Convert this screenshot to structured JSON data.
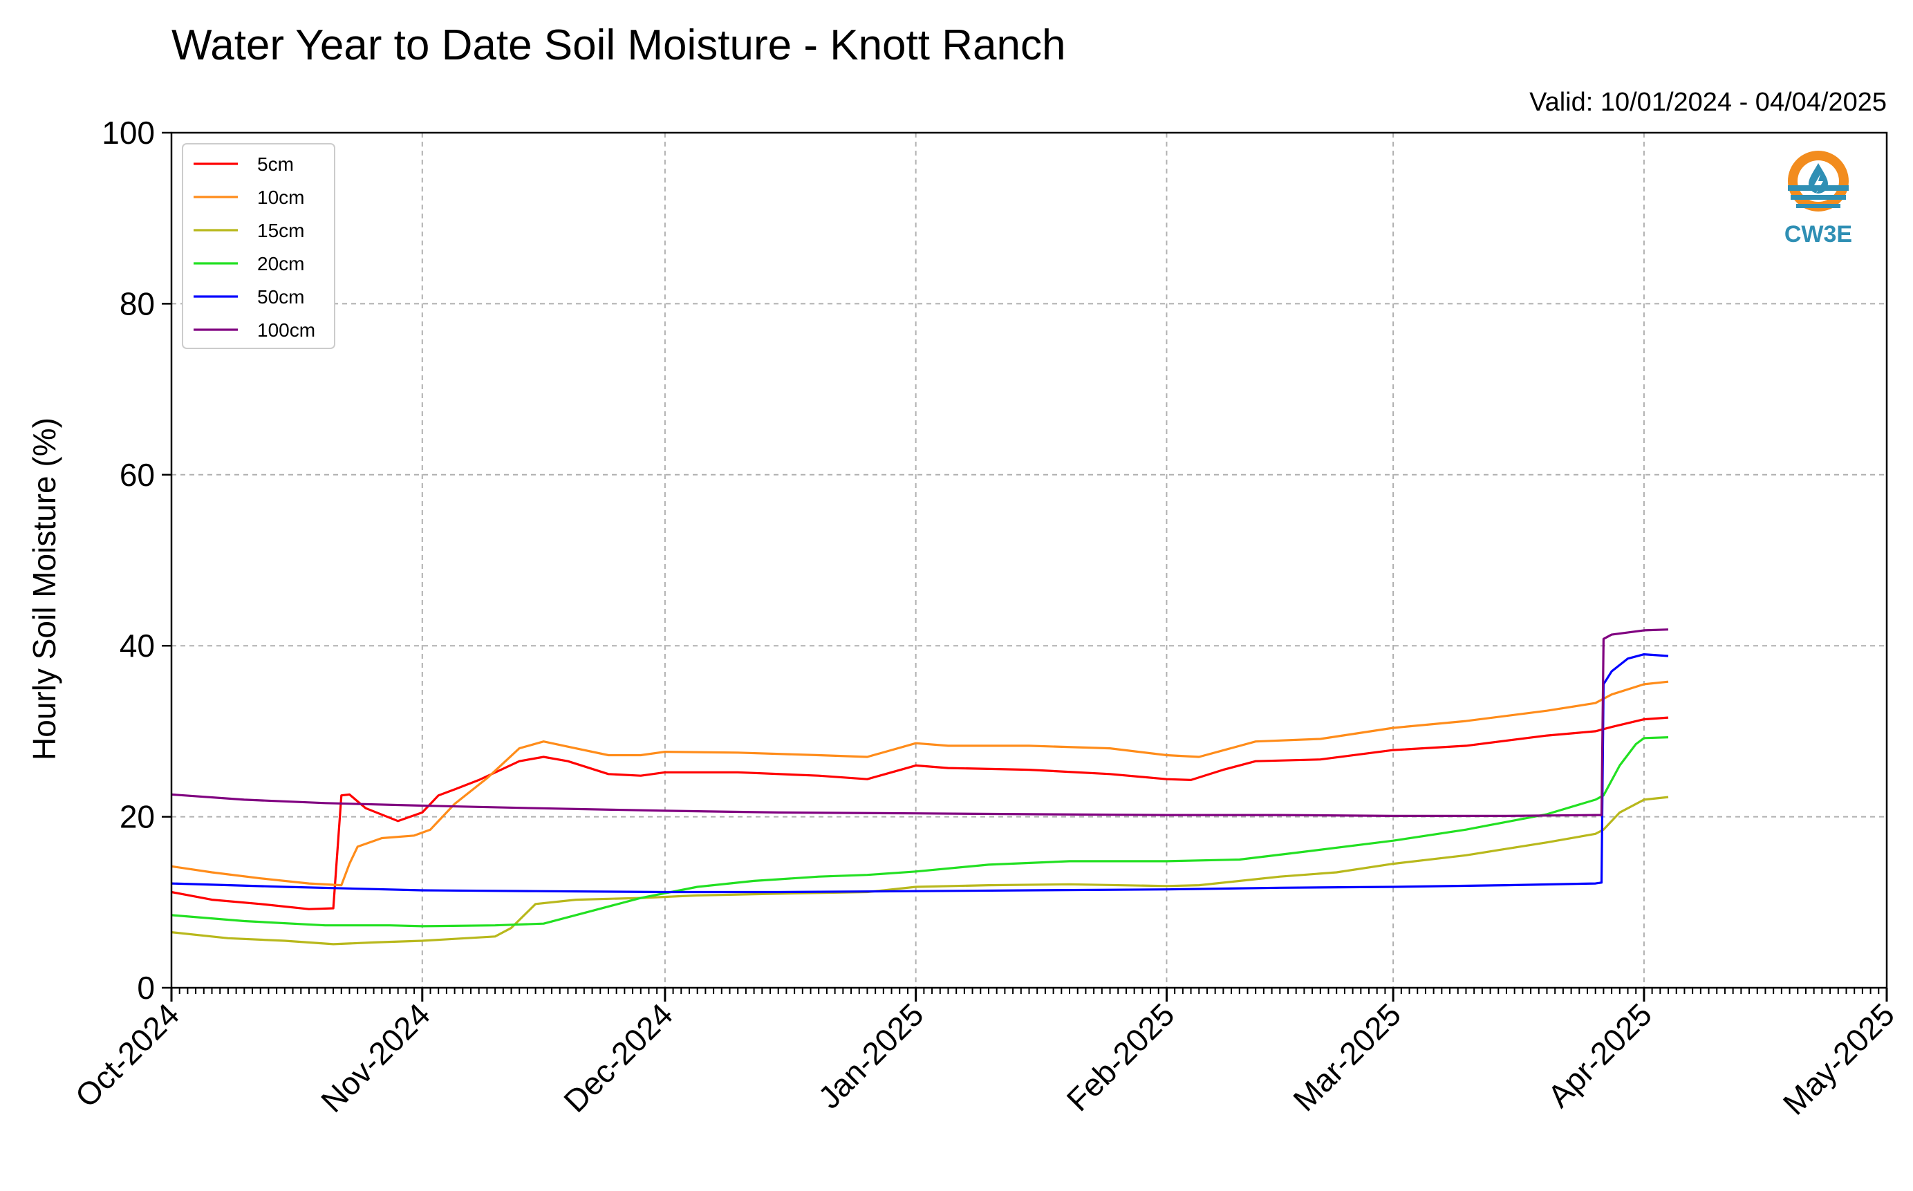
{
  "chart_data": {
    "type": "line",
    "title": "Water Year to Date Soil Moisture - Knott Ranch",
    "subtitle": "Valid: 10/01/2024 - 04/04/2025",
    "ylabel": "Hourly Soil Moisture (%)",
    "xlabel": "",
    "ylim": [
      0,
      100
    ],
    "yticks": [
      "0",
      "20",
      "40",
      "60",
      "80",
      "100"
    ],
    "xlim": [
      "2024-10-01",
      "2025-05-01"
    ],
    "xticks": [
      {
        "date": "2024-10-01",
        "label": "Oct-2024"
      },
      {
        "date": "2024-11-01",
        "label": "Nov-2024"
      },
      {
        "date": "2024-12-01",
        "label": "Dec-2024"
      },
      {
        "date": "2025-01-01",
        "label": "Jan-2025"
      },
      {
        "date": "2025-02-01",
        "label": "Feb-2025"
      },
      {
        "date": "2025-03-01",
        "label": "Mar-2025"
      },
      {
        "date": "2025-04-01",
        "label": "Apr-2025"
      },
      {
        "date": "2025-05-01",
        "label": "May-2025"
      }
    ],
    "grid": true,
    "legend_position": "top-left",
    "series": [
      {
        "name": "5cm",
        "color": "#ff0000",
        "points": [
          [
            "2024-10-01",
            11.2
          ],
          [
            "2024-10-06",
            10.3
          ],
          [
            "2024-10-12",
            9.8
          ],
          [
            "2024-10-18",
            9.2
          ],
          [
            "2024-10-21",
            9.3
          ],
          [
            "2024-10-22",
            22.5
          ],
          [
            "2024-10-23",
            22.6
          ],
          [
            "2024-10-25",
            21.0
          ],
          [
            "2024-10-29",
            19.5
          ],
          [
            "2024-11-01",
            20.5
          ],
          [
            "2024-11-03",
            22.5
          ],
          [
            "2024-11-05",
            23.2
          ],
          [
            "2024-11-08",
            24.3
          ],
          [
            "2024-11-13",
            26.5
          ],
          [
            "2024-11-16",
            27.0
          ],
          [
            "2024-11-19",
            26.5
          ],
          [
            "2024-11-24",
            25.0
          ],
          [
            "2024-11-28",
            24.8
          ],
          [
            "2024-12-01",
            25.2
          ],
          [
            "2024-12-10",
            25.2
          ],
          [
            "2024-12-20",
            24.8
          ],
          [
            "2024-12-26",
            24.4
          ],
          [
            "2025-01-01",
            26.0
          ],
          [
            "2025-01-05",
            25.7
          ],
          [
            "2025-01-15",
            25.5
          ],
          [
            "2025-01-25",
            25.0
          ],
          [
            "2025-02-01",
            24.4
          ],
          [
            "2025-02-04",
            24.3
          ],
          [
            "2025-02-08",
            25.5
          ],
          [
            "2025-02-12",
            26.5
          ],
          [
            "2025-02-20",
            26.7
          ],
          [
            "2025-03-01",
            27.8
          ],
          [
            "2025-03-10",
            28.3
          ],
          [
            "2025-03-20",
            29.5
          ],
          [
            "2025-03-26",
            30.0
          ],
          [
            "2025-03-28",
            30.5
          ],
          [
            "2025-04-01",
            31.4
          ],
          [
            "2025-04-04",
            31.6
          ]
        ]
      },
      {
        "name": "10cm",
        "color": "#ff8c1a",
        "points": [
          [
            "2024-10-01",
            14.2
          ],
          [
            "2024-10-06",
            13.5
          ],
          [
            "2024-10-12",
            12.8
          ],
          [
            "2024-10-18",
            12.2
          ],
          [
            "2024-10-22",
            12.0
          ],
          [
            "2024-10-23",
            14.5
          ],
          [
            "2024-10-24",
            16.5
          ],
          [
            "2024-10-27",
            17.5
          ],
          [
            "2024-10-31",
            17.8
          ],
          [
            "2024-11-02",
            18.5
          ],
          [
            "2024-11-05",
            21.5
          ],
          [
            "2024-11-09",
            24.5
          ],
          [
            "2024-11-13",
            28.0
          ],
          [
            "2024-11-16",
            28.8
          ],
          [
            "2024-11-19",
            28.2
          ],
          [
            "2024-11-24",
            27.2
          ],
          [
            "2024-11-28",
            27.2
          ],
          [
            "2024-12-01",
            27.6
          ],
          [
            "2024-12-10",
            27.5
          ],
          [
            "2024-12-20",
            27.2
          ],
          [
            "2024-12-26",
            27.0
          ],
          [
            "2025-01-01",
            28.6
          ],
          [
            "2025-01-05",
            28.3
          ],
          [
            "2025-01-15",
            28.3
          ],
          [
            "2025-01-25",
            28.0
          ],
          [
            "2025-02-01",
            27.2
          ],
          [
            "2025-02-05",
            27.0
          ],
          [
            "2025-02-12",
            28.8
          ],
          [
            "2025-02-20",
            29.1
          ],
          [
            "2025-03-01",
            30.4
          ],
          [
            "2025-03-10",
            31.2
          ],
          [
            "2025-03-20",
            32.4
          ],
          [
            "2025-03-26",
            33.3
          ],
          [
            "2025-03-28",
            34.3
          ],
          [
            "2025-04-01",
            35.5
          ],
          [
            "2025-04-04",
            35.8
          ]
        ]
      },
      {
        "name": "15cm",
        "color": "#b8b81c",
        "points": [
          [
            "2024-10-01",
            6.5
          ],
          [
            "2024-10-08",
            5.8
          ],
          [
            "2024-10-15",
            5.5
          ],
          [
            "2024-10-21",
            5.1
          ],
          [
            "2024-10-26",
            5.3
          ],
          [
            "2024-11-01",
            5.5
          ],
          [
            "2024-11-10",
            6.0
          ],
          [
            "2024-11-12",
            7.0
          ],
          [
            "2024-11-15",
            9.8
          ],
          [
            "2024-11-20",
            10.3
          ],
          [
            "2024-11-28",
            10.5
          ],
          [
            "2024-12-05",
            10.8
          ],
          [
            "2024-12-15",
            11.0
          ],
          [
            "2024-12-26",
            11.2
          ],
          [
            "2025-01-01",
            11.8
          ],
          [
            "2025-01-10",
            12.0
          ],
          [
            "2025-01-20",
            12.1
          ],
          [
            "2025-02-01",
            11.9
          ],
          [
            "2025-02-05",
            12.0
          ],
          [
            "2025-02-15",
            13.0
          ],
          [
            "2025-02-22",
            13.5
          ],
          [
            "2025-03-01",
            14.5
          ],
          [
            "2025-03-10",
            15.5
          ],
          [
            "2025-03-20",
            17.0
          ],
          [
            "2025-03-26",
            18.0
          ],
          [
            "2025-03-27",
            18.5
          ],
          [
            "2025-03-29",
            20.5
          ],
          [
            "2025-04-01",
            22.0
          ],
          [
            "2025-04-04",
            22.3
          ]
        ]
      },
      {
        "name": "20cm",
        "color": "#22e022",
        "points": [
          [
            "2024-10-01",
            8.5
          ],
          [
            "2024-10-10",
            7.8
          ],
          [
            "2024-10-20",
            7.3
          ],
          [
            "2024-10-28",
            7.3
          ],
          [
            "2024-11-01",
            7.2
          ],
          [
            "2024-11-10",
            7.3
          ],
          [
            "2024-11-16",
            7.5
          ],
          [
            "2024-11-22",
            9.0
          ],
          [
            "2024-11-28",
            10.5
          ],
          [
            "2024-12-05",
            11.8
          ],
          [
            "2024-12-12",
            12.5
          ],
          [
            "2024-12-20",
            13.0
          ],
          [
            "2024-12-26",
            13.2
          ],
          [
            "2025-01-01",
            13.6
          ],
          [
            "2025-01-10",
            14.4
          ],
          [
            "2025-01-20",
            14.8
          ],
          [
            "2025-02-01",
            14.8
          ],
          [
            "2025-02-10",
            15.0
          ],
          [
            "2025-02-17",
            15.8
          ],
          [
            "2025-03-01",
            17.2
          ],
          [
            "2025-03-10",
            18.5
          ],
          [
            "2025-03-20",
            20.3
          ],
          [
            "2025-03-26",
            22.0
          ],
          [
            "2025-03-27",
            22.5
          ],
          [
            "2025-03-29",
            26.0
          ],
          [
            "2025-03-31",
            28.5
          ],
          [
            "2025-04-01",
            29.2
          ],
          [
            "2025-04-04",
            29.3
          ]
        ]
      },
      {
        "name": "50cm",
        "color": "#0000ff",
        "points": [
          [
            "2024-10-01",
            12.2
          ],
          [
            "2024-10-15",
            11.8
          ],
          [
            "2024-11-01",
            11.4
          ],
          [
            "2024-11-15",
            11.3
          ],
          [
            "2024-12-01",
            11.2
          ],
          [
            "2024-12-15",
            11.2
          ],
          [
            "2025-01-01",
            11.3
          ],
          [
            "2025-01-15",
            11.4
          ],
          [
            "2025-02-01",
            11.5
          ],
          [
            "2025-02-15",
            11.7
          ],
          [
            "2025-03-01",
            11.8
          ],
          [
            "2025-03-15",
            12.0
          ],
          [
            "2025-03-26",
            12.2
          ],
          [
            "2025-03-26T18",
            12.3
          ],
          [
            "2025-03-27",
            35.5
          ],
          [
            "2025-03-28",
            37.0
          ],
          [
            "2025-03-30",
            38.5
          ],
          [
            "2025-04-01",
            39.0
          ],
          [
            "2025-04-04",
            38.8
          ]
        ]
      },
      {
        "name": "100cm",
        "color": "#800080",
        "points": [
          [
            "2024-10-01",
            22.6
          ],
          [
            "2024-10-10",
            22.0
          ],
          [
            "2024-10-20",
            21.6
          ],
          [
            "2024-11-01",
            21.3
          ],
          [
            "2024-11-15",
            21.0
          ],
          [
            "2024-12-01",
            20.7
          ],
          [
            "2024-12-15",
            20.5
          ],
          [
            "2025-01-01",
            20.4
          ],
          [
            "2025-01-15",
            20.3
          ],
          [
            "2025-02-01",
            20.2
          ],
          [
            "2025-02-15",
            20.2
          ],
          [
            "2025-03-01",
            20.1
          ],
          [
            "2025-03-15",
            20.1
          ],
          [
            "2025-03-26",
            20.2
          ],
          [
            "2025-03-26T18",
            20.2
          ],
          [
            "2025-03-27",
            40.8
          ],
          [
            "2025-03-28",
            41.3
          ],
          [
            "2025-04-01",
            41.8
          ],
          [
            "2025-04-04",
            41.9
          ]
        ]
      }
    ]
  },
  "logo": {
    "text": "CW3E",
    "ring_color": "#f28c1e",
    "wave_color": "#2f8fb4"
  }
}
